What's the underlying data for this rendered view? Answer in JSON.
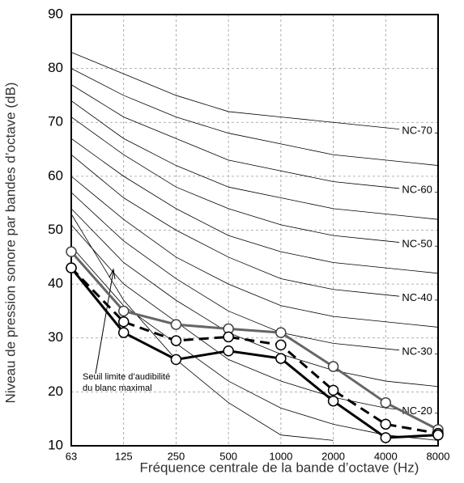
{
  "chart_data": {
    "type": "line",
    "x_label": "Fréquence centrale de la bande d’octave (Hz)",
    "y_label": "Niveau de pression sonore par bandes d’octave (dB)",
    "categories": [
      "63",
      "125",
      "250",
      "500",
      "1000",
      "2000",
      "4000",
      "8000"
    ],
    "ylim": [
      10,
      90
    ],
    "yticks": [
      10,
      20,
      30,
      40,
      50,
      60,
      70,
      80,
      90
    ],
    "grid": true,
    "annotation": [
      "Seuil limite d’audibilité",
      "du blanc maximal"
    ],
    "curve_color": "#000000",
    "curves": [
      {
        "label": "NC-70",
        "values": [
          83,
          79,
          75,
          72,
          71,
          70,
          69,
          68
        ]
      },
      {
        "values": [
          80,
          75,
          71,
          68,
          66,
          64,
          63,
          62
        ]
      },
      {
        "label": "NC-60",
        "values": [
          77,
          71,
          67,
          63,
          61,
          59,
          58,
          57
        ]
      },
      {
        "values": [
          74,
          67,
          62,
          58,
          56,
          54,
          53,
          52
        ]
      },
      {
        "label": "NC-50",
        "values": [
          71,
          64,
          58,
          54,
          51,
          49,
          48,
          47
        ]
      },
      {
        "values": [
          67,
          60,
          54,
          49,
          46,
          44,
          43,
          42
        ]
      },
      {
        "label": "NC-40",
        "values": [
          64,
          56,
          50,
          45,
          41,
          39,
          38,
          37
        ]
      },
      {
        "values": [
          60,
          52,
          45,
          40,
          36,
          34,
          33,
          32
        ]
      },
      {
        "label": "NC-30",
        "values": [
          57,
          48,
          41,
          35,
          31,
          29,
          28,
          27
        ]
      },
      {
        "values": [
          54,
          44,
          37,
          31,
          27,
          24,
          22,
          21
        ]
      },
      {
        "label": "NC-20",
        "values": [
          51,
          40,
          33,
          26,
          22,
          19,
          17,
          16
        ]
      },
      {
        "values": [
          47,
          36,
          29,
          22,
          17,
          14,
          12,
          11
        ]
      },
      {
        "values": [
          53,
          37,
          26,
          18,
          12,
          11,
          null,
          null
        ]
      }
    ],
    "series": [
      {
        "color": "#666666",
        "line_style": "solid",
        "values": [
          46,
          35,
          32.5,
          31.7,
          31,
          24.7,
          18,
          13
        ]
      },
      {
        "color": "#000000",
        "line_style": "dashed",
        "values": [
          43,
          33,
          29.5,
          30.2,
          28.7,
          20.3,
          14,
          12.3
        ]
      },
      {
        "color": "#000000",
        "line_style": "solid",
        "values": [
          43,
          31,
          26,
          27.6,
          26.2,
          18.3,
          11.5,
          12
        ]
      }
    ]
  }
}
